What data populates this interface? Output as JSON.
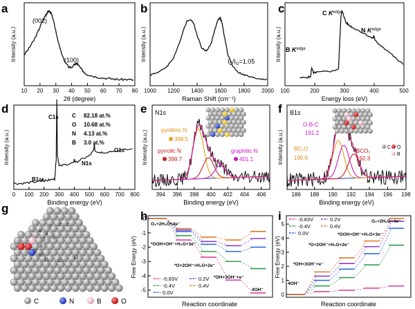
{
  "figure": {
    "panel_letters": [
      "a",
      "b",
      "c",
      "d",
      "e",
      "f",
      "g",
      "h",
      "i"
    ]
  },
  "chart_data": [
    {
      "panel": "a",
      "type": "line",
      "xlabel": "2θ (degree)",
      "ylabel": "Intensity (a.u.)",
      "xlim": [
        10,
        80
      ],
      "xticks": [
        "10",
        "20",
        "30",
        "40",
        "50",
        "60",
        "70",
        "80"
      ],
      "annotations": [
        "(002)",
        "(100)"
      ],
      "x": [
        10,
        13,
        16,
        19,
        21,
        23,
        24,
        25,
        26,
        27,
        28,
        30,
        32,
        34,
        36,
        38,
        40,
        42,
        43,
        44,
        46,
        48,
        50,
        55,
        60,
        65,
        70,
        75,
        80
      ],
      "y": [
        0.38,
        0.47,
        0.58,
        0.72,
        0.83,
        0.92,
        0.96,
        0.99,
        1.0,
        0.97,
        0.9,
        0.72,
        0.52,
        0.37,
        0.27,
        0.21,
        0.2,
        0.24,
        0.26,
        0.24,
        0.18,
        0.13,
        0.1,
        0.07,
        0.05,
        0.04,
        0.03,
        0.03,
        0.02
      ]
    },
    {
      "panel": "b",
      "type": "line",
      "xlabel": "Raman Shift (cm⁻¹)",
      "ylabel": "Intensity (a.u.)",
      "xlim": [
        1000,
        2000
      ],
      "xticks": [
        "1000",
        "1200",
        "1400",
        "1600",
        "1800",
        "2000"
      ],
      "annotations": [
        "I",
        "D",
        "/I",
        "G",
        "=1.05"
      ],
      "ratio_ID_IG": 1.05,
      "x": [
        1000,
        1050,
        1100,
        1150,
        1200,
        1250,
        1280,
        1310,
        1340,
        1370,
        1400,
        1440,
        1480,
        1520,
        1550,
        1575,
        1595,
        1610,
        1630,
        1660,
        1700,
        1750,
        1800,
        1850,
        1900,
        1950,
        2000
      ],
      "y": [
        0.1,
        0.13,
        0.17,
        0.24,
        0.36,
        0.58,
        0.76,
        0.9,
        0.94,
        0.88,
        0.7,
        0.5,
        0.46,
        0.58,
        0.78,
        0.92,
        0.96,
        0.9,
        0.7,
        0.42,
        0.24,
        0.14,
        0.1,
        0.07,
        0.05,
        0.04,
        0.03
      ]
    },
    {
      "panel": "c",
      "type": "line",
      "xlabel": "Energy loss (eV)",
      "ylabel": "Intensity (a.u.)",
      "xlim": [
        100,
        500
      ],
      "xticks": [
        "100",
        "200",
        "300",
        "400",
        "500"
      ],
      "annotations": [
        "B",
        " K",
        "edge",
        "C",
        " K",
        "edge",
        "N",
        " K",
        "edge"
      ],
      "x": [
        150,
        175,
        186,
        190,
        196,
        205,
        230,
        260,
        280,
        284,
        288,
        292,
        298,
        305,
        315,
        330,
        350,
        375,
        395,
        399,
        403,
        420,
        450,
        480,
        500
      ],
      "y": [
        0.05,
        0.06,
        0.07,
        0.2,
        0.12,
        0.13,
        0.14,
        0.15,
        0.18,
        0.55,
        0.92,
        1.0,
        0.93,
        0.84,
        0.8,
        0.76,
        0.72,
        0.66,
        0.61,
        0.65,
        0.58,
        0.52,
        0.42,
        0.3,
        0.24
      ]
    },
    {
      "panel": "d",
      "type": "line",
      "xlabel": "Binding energy (eV)",
      "ylabel": "Intensity (a.u.)",
      "xlim": [
        0,
        800
      ],
      "xticks": [
        "0",
        "100",
        "200",
        "300",
        "400",
        "500",
        "600",
        "700",
        "800"
      ],
      "peak_labels": [
        "B1s",
        "C1s",
        "N1s",
        "O1s"
      ],
      "composition": [
        {
          "element": "C",
          "value": "82.18 at.%"
        },
        {
          "element": "O",
          "value": "10.68 at.%"
        },
        {
          "element": "N",
          "value": "4.13 at.%"
        },
        {
          "element": "B",
          "value": "3.0 at.%"
        }
      ],
      "x": [
        0,
        50,
        100,
        150,
        188,
        192,
        196,
        230,
        270,
        280,
        284,
        288,
        300,
        350,
        395,
        400,
        405,
        450,
        500,
        528,
        532,
        536,
        560,
        600,
        700,
        800
      ],
      "y": [
        0.02,
        0.02,
        0.03,
        0.04,
        0.05,
        0.08,
        0.05,
        0.06,
        0.07,
        0.3,
        1.0,
        0.35,
        0.22,
        0.24,
        0.26,
        0.3,
        0.26,
        0.3,
        0.34,
        0.4,
        0.48,
        0.4,
        0.38,
        0.38,
        0.4,
        0.42
      ]
    },
    {
      "panel": "e",
      "type": "line",
      "subtitle": "N1s",
      "xlabel": "Binding energy (eV)",
      "ylabel": "Intensity (a.u.)",
      "xlim": [
        393,
        407
      ],
      "xticks": [
        "394",
        "396",
        "398",
        "400",
        "402",
        "404",
        "406"
      ],
      "components": [
        {
          "name": "pyridinic N",
          "position": "398.5",
          "center": 398.5,
          "height": 0.72
        },
        {
          "name": "pyrrolic N",
          "position": "399.7",
          "center": 399.7,
          "height": 0.3
        },
        {
          "name": "graphitic N",
          "position": "401.1",
          "center": 401.1,
          "height": 0.18
        }
      ]
    },
    {
      "panel": "f",
      "type": "line",
      "subtitle": "B1s",
      "xlabel": "Binding energy (eV)",
      "ylabel": "Intensity (a.u.)",
      "xlim": [
        185,
        198
      ],
      "xticks": [
        "186",
        "188",
        "190",
        "192",
        "194",
        "196",
        "198"
      ],
      "components": [
        {
          "name": "O-B-C",
          "position": "191.2",
          "center": 191.2,
          "height": 0.48
        },
        {
          "name": "BC₂O",
          "position": "190.6",
          "center": 190.6,
          "height": 0.55
        },
        {
          "name": "BCO₂",
          "position": "192.3",
          "center": 192.3,
          "height": 0.35
        }
      ],
      "legend": [
        "C",
        "O",
        "B"
      ]
    },
    {
      "panel": "h",
      "type": "line",
      "xlabel": "Reaction coordinate",
      "ylabel": "Free Energy (eV)",
      "yticks": [
        "0",
        "-1",
        "-2",
        "-3",
        "-4",
        "-5"
      ],
      "ylim": [
        -5.5,
        0.2
      ],
      "steps": [
        "O₂+2H₂O+4e⁻",
        "*OOH+OH⁻+H₂O+3e⁻",
        "*O+2OH⁻+H₂O+2e⁻",
        "*OH+3OH⁻+e⁻",
        "4OH⁻"
      ],
      "series": [
        {
          "name": "-0.83V",
          "color": "#e040a0",
          "values": [
            0.0,
            -1.5,
            -2.7,
            -4.3,
            -5.2
          ]
        },
        {
          "name": "-0.4V",
          "color": "#2f9e4a",
          "values": [
            0.0,
            -1.2,
            -2.3,
            -3.0,
            -3.5
          ]
        },
        {
          "name": "0.0V",
          "color": "#2f6bd8",
          "values": [
            0.0,
            -0.9,
            -1.8,
            -2.3,
            -2.0
          ]
        },
        {
          "name": "0.2V",
          "color": "#8a3fd0",
          "values": [
            0.0,
            -0.8,
            -1.6,
            -1.9,
            -1.4
          ]
        },
        {
          "name": "0.4V",
          "color": "#e07a2a",
          "values": [
            0.0,
            -0.7,
            -1.3,
            -1.5,
            -0.9
          ]
        }
      ]
    },
    {
      "panel": "i",
      "type": "line",
      "xlabel": "Reaction coordinate",
      "ylabel": "Free Energy (eV)",
      "yticks": [
        "0",
        "1",
        "2",
        "3",
        "4",
        "5"
      ],
      "ylim": [
        -0.2,
        5.6
      ],
      "steps": [
        "4OH⁻",
        "*OH+3OH⁻+e⁻",
        "*O+2OH⁻+H₂O+2e⁻",
        "*OOH+OH⁻+H₂O+3e⁻",
        "O₂+2H₂O+4e⁻"
      ],
      "series": [
        {
          "name": "-0.83V",
          "color": "#e040a0",
          "values": [
            0.0,
            0.2,
            0.3,
            0.45,
            0.6
          ]
        },
        {
          "name": "-0.4V",
          "color": "#2f9e4a",
          "values": [
            0.0,
            0.6,
            1.2,
            2.1,
            3.5
          ]
        },
        {
          "name": "0.0V",
          "color": "#2f6bd8",
          "values": [
            0.0,
            1.0,
            1.8,
            2.9,
            4.7
          ]
        },
        {
          "name": "0.2V",
          "color": "#8a3fd0",
          "values": [
            0.0,
            1.3,
            2.2,
            3.4,
            5.2
          ]
        },
        {
          "name": "0.4V",
          "color": "#e07a2a",
          "values": [
            0.0,
            1.6,
            2.6,
            3.8,
            5.4
          ]
        }
      ]
    }
  ],
  "panel_g": {
    "atom_labels": [
      "1",
      "2",
      "3",
      "4",
      "5",
      "6",
      "7",
      "8",
      "9",
      "10",
      "11",
      "12",
      "13"
    ],
    "legend": [
      {
        "symbol": "C",
        "color": "#9a9a9a"
      },
      {
        "symbol": "N",
        "color": "#1f3fcf"
      },
      {
        "symbol": "B",
        "color": "#f0b8c8"
      },
      {
        "symbol": "O",
        "color": "#d62020"
      }
    ]
  },
  "colors": {
    "experimental": "#111111",
    "fit_total": "#e0208a",
    "pyridinic": "#e8a020",
    "pyrrolic": "#d02020",
    "graphitic": "#c020c0",
    "background": "#2040d0",
    "label_orange": "#e08a10",
    "label_red": "#cc1111",
    "label_magenta": "#cc11cc"
  }
}
